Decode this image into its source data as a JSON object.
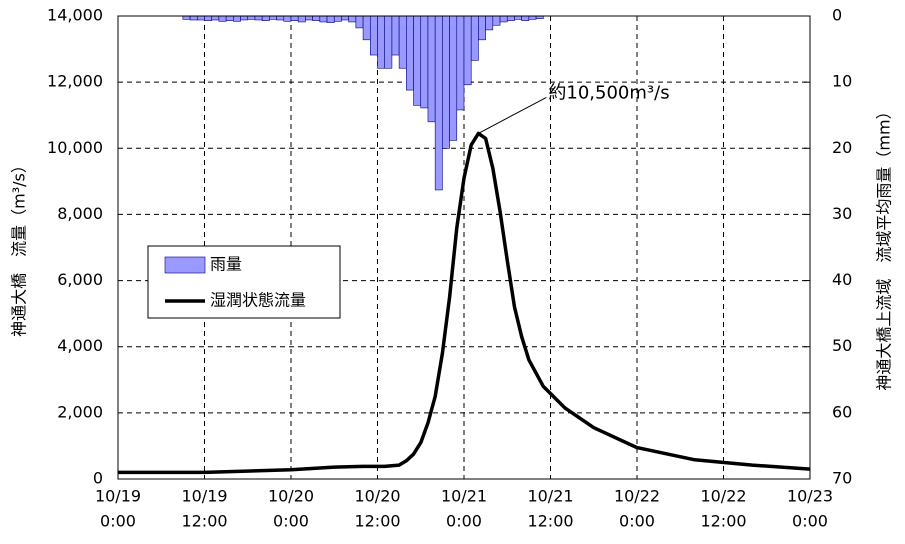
{
  "chart_data": {
    "type": "combo",
    "ylabel": "神通大橋　流量（m³/s）",
    "y2label": "神通大橋上流域　流域平均雨量（mm）",
    "annotation": "約10,500m³/s",
    "xlim": [
      "10/19 0:00",
      "10/23 0:00"
    ],
    "xticks": [
      {
        "value": "10/19 0:00",
        "label": [
          "10/19",
          "0:00"
        ]
      },
      {
        "value": "10/19 12:00",
        "label": [
          "10/19",
          "12:00"
        ]
      },
      {
        "value": "10/20 0:00",
        "label": [
          "10/20",
          "0:00"
        ]
      },
      {
        "value": "10/20 12:00",
        "label": [
          "10/20",
          "12:00"
        ]
      },
      {
        "value": "10/21 0:00",
        "label": [
          "10/21",
          "0:00"
        ]
      },
      {
        "value": "10/21 12:00",
        "label": [
          "10/21",
          "12:00"
        ]
      },
      {
        "value": "10/22 0:00",
        "label": [
          "10/22",
          "0:00"
        ]
      },
      {
        "value": "10/22 12:00",
        "label": [
          "10/22",
          "12:00"
        ]
      },
      {
        "value": "10/23 0:00",
        "label": [
          "10/23",
          "0:00"
        ]
      }
    ],
    "ylim": [
      0,
      14000
    ],
    "yticks": [
      0,
      {
        "value": 2000,
        "label": "2,000"
      },
      {
        "value": 4000,
        "label": "4,000"
      },
      {
        "value": 6000,
        "label": "6,000"
      },
      {
        "value": 8000,
        "label": "8,000"
      },
      {
        "value": 10000,
        "label": "10,000"
      },
      {
        "value": 12000,
        "label": "12,000"
      },
      {
        "value": 14000,
        "label": "14,000"
      }
    ],
    "y2lim": [
      70,
      0
    ],
    "y2ticks": [
      0,
      10,
      20,
      30,
      40,
      50,
      60,
      70
    ],
    "grid": true,
    "series": [
      {
        "name": "雨量",
        "type": "bar",
        "axis": "y2",
        "color": "#9999ff",
        "x": [
          "10/19 9:00",
          "10/19 10:00",
          "10/19 11:00",
          "10/19 12:00",
          "10/19 13:00",
          "10/19 14:00",
          "10/19 15:00",
          "10/19 16:00",
          "10/19 17:00",
          "10/19 18:00",
          "10/19 19:00",
          "10/19 20:00",
          "10/19 21:00",
          "10/19 22:00",
          "10/19 23:00",
          "10/20 0:00",
          "10/20 1:00",
          "10/20 2:00",
          "10/20 3:00",
          "10/20 4:00",
          "10/20 5:00",
          "10/20 6:00",
          "10/20 7:00",
          "10/20 8:00",
          "10/20 9:00",
          "10/20 10:00",
          "10/20 11:00",
          "10/20 12:00",
          "10/20 13:00",
          "10/20 14:00",
          "10/20 15:00",
          "10/20 16:00",
          "10/20 17:00",
          "10/20 18:00",
          "10/20 19:00",
          "10/20 20:00",
          "10/20 21:00",
          "10/20 22:00",
          "10/20 23:00",
          "10/21 0:00",
          "10/21 1:00",
          "10/21 2:00",
          "10/21 3:00",
          "10/21 4:00",
          "10/21 5:00",
          "10/21 6:00",
          "10/21 7:00",
          "10/21 8:00",
          "10/21 9:00",
          "10/21 10:00"
        ],
        "values": [
          0.5,
          0.6,
          0.6,
          0.7,
          0.6,
          0.8,
          0.7,
          0.8,
          0.6,
          0.5,
          0.6,
          0.7,
          0.5,
          0.6,
          0.8,
          0.7,
          0.9,
          0.6,
          0.7,
          0.9,
          1.0,
          0.8,
          0.6,
          0.9,
          1.8,
          3.6,
          5.9,
          7.9,
          7.9,
          5.9,
          7.9,
          11.2,
          13.5,
          13.9,
          16,
          26.3,
          20,
          18.8,
          14.2,
          10.4,
          6.7,
          3.6,
          2.1,
          1.4,
          0.9,
          0.7,
          0.5,
          0.7,
          0.5,
          0.4
        ]
      },
      {
        "name": "湿潤状態流量",
        "type": "line",
        "color": "#000000",
        "x": [
          "10/19 0:00",
          "10/19 12:00",
          "10/20 0:00",
          "10/20 6:00",
          "10/20 10:00",
          "10/20 13:00",
          "10/20 15:00",
          "10/20 16:00",
          "10/20 17:00",
          "10/20 18:00",
          "10/20 19:00",
          "10/20 20:00",
          "10/20 21:00",
          "10/20 22:00",
          "10/20 23:00",
          "10/21 0:00",
          "10/21 1:00",
          "10/21 2:00",
          "10/21 3:00",
          "10/21 4:00",
          "10/21 5:00",
          "10/21 6:00",
          "10/21 7:00",
          "10/21 8:00",
          "10/21 9:00",
          "10/21 11:00",
          "10/21 14:00",
          "10/21 18:00",
          "10/22 0:00",
          "10/22 8:00",
          "10/22 16:00",
          "10/23 0:00"
        ],
        "values": [
          200,
          200,
          280,
          360,
          380,
          380,
          420,
          550,
          750,
          1100,
          1700,
          2500,
          3800,
          5500,
          7600,
          9100,
          10100,
          10450,
          10300,
          9400,
          8100,
          6600,
          5200,
          4300,
          3600,
          2800,
          2150,
          1550,
          950,
          580,
          420,
          300
        ]
      }
    ]
  }
}
